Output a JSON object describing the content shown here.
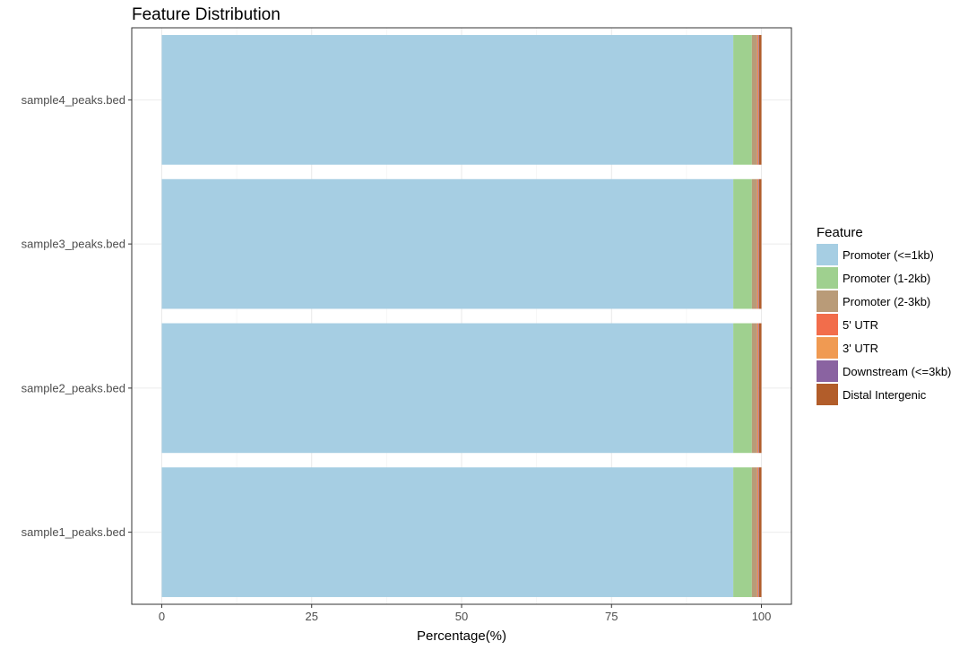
{
  "chart_data": {
    "type": "bar",
    "orientation": "horizontal",
    "stacked": true,
    "title": "Feature Distribution",
    "xlabel": "Percentage(%)",
    "ylabel": "",
    "xlim": [
      -5,
      105
    ],
    "x_ticks": [
      "0",
      "25",
      "50",
      "75",
      "100"
    ],
    "x_tick_values": [
      0,
      25,
      50,
      75,
      100
    ],
    "categories": [
      "sample4_peaks.bed",
      "sample3_peaks.bed",
      "sample2_peaks.bed",
      "sample1_peaks.bed"
    ],
    "legend_title": "Feature",
    "legend_position": "right",
    "grid": true,
    "series": [
      {
        "name": "Promoter (<=1kb)",
        "color": "#a6cee3",
        "values": [
          95.3,
          95.3,
          95.3,
          95.3
        ]
      },
      {
        "name": "Promoter (1-2kb)",
        "color": "#9fd08f",
        "values": [
          3.1,
          3.1,
          3.1,
          3.1
        ]
      },
      {
        "name": "Promoter (2-3kb)",
        "color": "#b99b78",
        "values": [
          0.9,
          0.9,
          0.9,
          0.9
        ]
      },
      {
        "name": "5' UTR",
        "color": "#f26d4b",
        "values": [
          0.1,
          0.1,
          0.1,
          0.1
        ]
      },
      {
        "name": "3' UTR",
        "color": "#f09a52",
        "values": [
          0.1,
          0.1,
          0.1,
          0.1
        ]
      },
      {
        "name": "Downstream (<=3kb)",
        "color": "#8a63a1",
        "values": [
          0.1,
          0.1,
          0.1,
          0.1
        ]
      },
      {
        "name": "Distal Intergenic",
        "color": "#b25d2a",
        "values": [
          0.4,
          0.4,
          0.4,
          0.4
        ]
      }
    ]
  }
}
